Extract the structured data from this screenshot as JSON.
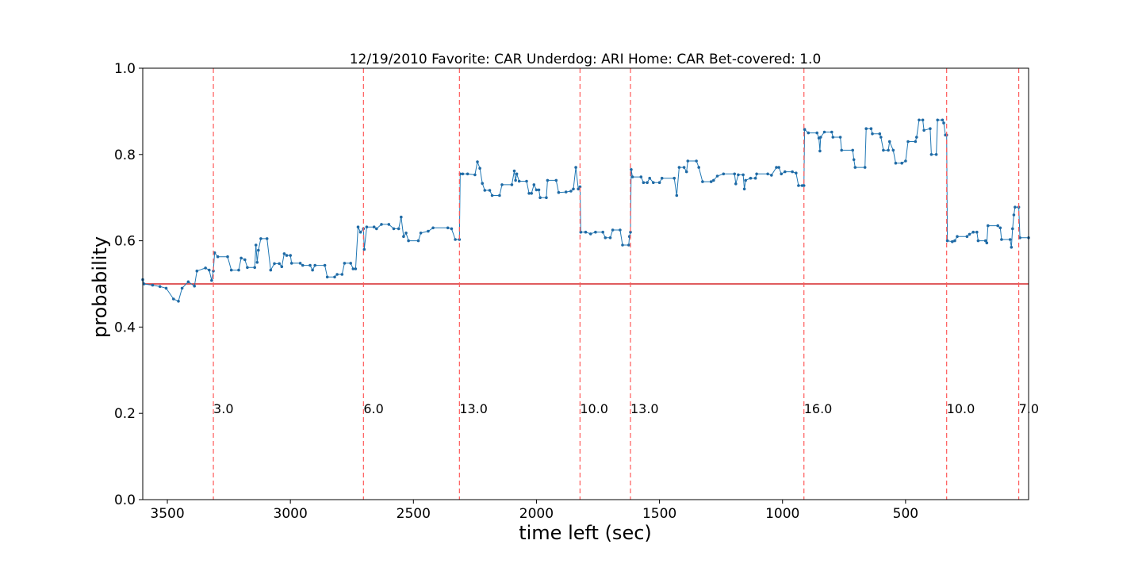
{
  "chart_data": {
    "type": "line",
    "title": "12/19/2010 Favorite: CAR Underdog: ARI Home: CAR Bet-covered: 1.0",
    "xlabel": "time left (sec)",
    "ylabel": "probability",
    "xlim": [
      3600,
      0
    ],
    "ylim": [
      0.0,
      1.0
    ],
    "x_ticks": [
      3500,
      3000,
      2500,
      2000,
      1500,
      1000,
      500
    ],
    "x_tick_labels": [
      "3500",
      "3000",
      "2500",
      "2000",
      "1500",
      "1000",
      "500"
    ],
    "y_ticks": [
      0.0,
      0.2,
      0.4,
      0.6,
      0.8,
      1.0
    ],
    "y_tick_labels": [
      "0.0",
      "0.2",
      "0.4",
      "0.6",
      "0.8",
      "1.0"
    ],
    "grid": false,
    "reference_line": {
      "y": 0.5,
      "color": "#d62728"
    },
    "series_color": "#1f77b4",
    "marker_color": "#1f6aa5",
    "event_line_color": "#ff5a5a",
    "events": [
      {
        "x": 3313,
        "label": "3.0"
      },
      {
        "x": 2703,
        "label": "6.0"
      },
      {
        "x": 2313,
        "label": "13.0"
      },
      {
        "x": 1823,
        "label": "10.0"
      },
      {
        "x": 1618,
        "label": "13.0"
      },
      {
        "x": 913,
        "label": "16.0"
      },
      {
        "x": 333,
        "label": "10.0"
      },
      {
        "x": 40,
        "label": "7.0"
      }
    ],
    "series": [
      {
        "values": [
          [
            3600,
            0.51
          ],
          [
            3595,
            0.5
          ],
          [
            3560,
            0.497
          ],
          [
            3530,
            0.494
          ],
          [
            3505,
            0.49
          ],
          [
            3475,
            0.465
          ],
          [
            3455,
            0.46
          ],
          [
            3440,
            0.49
          ],
          [
            3415,
            0.505
          ],
          [
            3390,
            0.495
          ],
          [
            3380,
            0.53
          ],
          [
            3345,
            0.537
          ],
          [
            3330,
            0.532
          ],
          [
            3320,
            0.508
          ],
          [
            3313,
            0.53
          ],
          [
            3308,
            0.572
          ],
          [
            3295,
            0.563
          ],
          [
            3255,
            0.563
          ],
          [
            3240,
            0.532
          ],
          [
            3210,
            0.532
          ],
          [
            3200,
            0.56
          ],
          [
            3185,
            0.556
          ],
          [
            3175,
            0.538
          ],
          [
            3145,
            0.538
          ],
          [
            3140,
            0.59
          ],
          [
            3135,
            0.55
          ],
          [
            3130,
            0.578
          ],
          [
            3120,
            0.605
          ],
          [
            3095,
            0.605
          ],
          [
            3080,
            0.532
          ],
          [
            3065,
            0.547
          ],
          [
            3045,
            0.547
          ],
          [
            3035,
            0.54
          ],
          [
            3025,
            0.57
          ],
          [
            3015,
            0.566
          ],
          [
            3000,
            0.566
          ],
          [
            2995,
            0.548
          ],
          [
            2960,
            0.548
          ],
          [
            2950,
            0.543
          ],
          [
            2920,
            0.543
          ],
          [
            2910,
            0.532
          ],
          [
            2900,
            0.543
          ],
          [
            2860,
            0.543
          ],
          [
            2850,
            0.516
          ],
          [
            2820,
            0.516
          ],
          [
            2810,
            0.522
          ],
          [
            2790,
            0.522
          ],
          [
            2780,
            0.548
          ],
          [
            2755,
            0.548
          ],
          [
            2745,
            0.535
          ],
          [
            2735,
            0.535
          ],
          [
            2725,
            0.632
          ],
          [
            2715,
            0.62
          ],
          [
            2703,
            0.628
          ],
          [
            2700,
            0.58
          ],
          [
            2690,
            0.632
          ],
          [
            2660,
            0.632
          ],
          [
            2650,
            0.628
          ],
          [
            2630,
            0.638
          ],
          [
            2600,
            0.638
          ],
          [
            2580,
            0.628
          ],
          [
            2560,
            0.628
          ],
          [
            2550,
            0.655
          ],
          [
            2540,
            0.61
          ],
          [
            2530,
            0.618
          ],
          [
            2520,
            0.6
          ],
          [
            2480,
            0.6
          ],
          [
            2470,
            0.618
          ],
          [
            2440,
            0.622
          ],
          [
            2420,
            0.63
          ],
          [
            2360,
            0.63
          ],
          [
            2345,
            0.628
          ],
          [
            2330,
            0.603
          ],
          [
            2313,
            0.603
          ],
          [
            2310,
            0.755
          ],
          [
            2300,
            0.755
          ],
          [
            2280,
            0.755
          ],
          [
            2250,
            0.753
          ],
          [
            2240,
            0.783
          ],
          [
            2230,
            0.768
          ],
          [
            2220,
            0.733
          ],
          [
            2210,
            0.717
          ],
          [
            2190,
            0.717
          ],
          [
            2180,
            0.705
          ],
          [
            2150,
            0.705
          ],
          [
            2140,
            0.73
          ],
          [
            2100,
            0.73
          ],
          [
            2090,
            0.762
          ],
          [
            2085,
            0.74
          ],
          [
            2080,
            0.755
          ],
          [
            2070,
            0.738
          ],
          [
            2040,
            0.738
          ],
          [
            2030,
            0.71
          ],
          [
            2020,
            0.71
          ],
          [
            2010,
            0.73
          ],
          [
            2000,
            0.718
          ],
          [
            1990,
            0.718
          ],
          [
            1985,
            0.7
          ],
          [
            1960,
            0.7
          ],
          [
            1955,
            0.74
          ],
          [
            1920,
            0.74
          ],
          [
            1910,
            0.712
          ],
          [
            1880,
            0.713
          ],
          [
            1860,
            0.715
          ],
          [
            1850,
            0.72
          ],
          [
            1840,
            0.77
          ],
          [
            1830,
            0.72
          ],
          [
            1823,
            0.725
          ],
          [
            1820,
            0.62
          ],
          [
            1800,
            0.62
          ],
          [
            1780,
            0.616
          ],
          [
            1760,
            0.62
          ],
          [
            1730,
            0.62
          ],
          [
            1720,
            0.607
          ],
          [
            1700,
            0.607
          ],
          [
            1690,
            0.625
          ],
          [
            1660,
            0.625
          ],
          [
            1650,
            0.59
          ],
          [
            1625,
            0.59
          ],
          [
            1622,
            0.61
          ],
          [
            1618,
            0.62
          ],
          [
            1615,
            0.765
          ],
          [
            1610,
            0.748
          ],
          [
            1575,
            0.748
          ],
          [
            1565,
            0.735
          ],
          [
            1550,
            0.735
          ],
          [
            1540,
            0.745
          ],
          [
            1525,
            0.735
          ],
          [
            1500,
            0.735
          ],
          [
            1490,
            0.745
          ],
          [
            1440,
            0.745
          ],
          [
            1430,
            0.705
          ],
          [
            1420,
            0.77
          ],
          [
            1400,
            0.77
          ],
          [
            1390,
            0.76
          ],
          [
            1385,
            0.785
          ],
          [
            1350,
            0.785
          ],
          [
            1340,
            0.77
          ],
          [
            1325,
            0.737
          ],
          [
            1290,
            0.737
          ],
          [
            1280,
            0.74
          ],
          [
            1265,
            0.75
          ],
          [
            1240,
            0.755
          ],
          [
            1195,
            0.755
          ],
          [
            1190,
            0.732
          ],
          [
            1180,
            0.753
          ],
          [
            1160,
            0.753
          ],
          [
            1155,
            0.72
          ],
          [
            1150,
            0.74
          ],
          [
            1130,
            0.745
          ],
          [
            1110,
            0.745
          ],
          [
            1105,
            0.755
          ],
          [
            1060,
            0.755
          ],
          [
            1045,
            0.752
          ],
          [
            1025,
            0.77
          ],
          [
            1015,
            0.77
          ],
          [
            1005,
            0.755
          ],
          [
            990,
            0.76
          ],
          [
            960,
            0.76
          ],
          [
            945,
            0.757
          ],
          [
            935,
            0.728
          ],
          [
            920,
            0.728
          ],
          [
            913,
            0.728
          ],
          [
            910,
            0.858
          ],
          [
            895,
            0.85
          ],
          [
            860,
            0.85
          ],
          [
            852,
            0.838
          ],
          [
            848,
            0.808
          ],
          [
            845,
            0.84
          ],
          [
            830,
            0.852
          ],
          [
            800,
            0.852
          ],
          [
            795,
            0.84
          ],
          [
            765,
            0.84
          ],
          [
            760,
            0.81
          ],
          [
            715,
            0.81
          ],
          [
            710,
            0.788
          ],
          [
            705,
            0.77
          ],
          [
            665,
            0.77
          ],
          [
            660,
            0.86
          ],
          [
            640,
            0.86
          ],
          [
            635,
            0.848
          ],
          [
            605,
            0.848
          ],
          [
            600,
            0.84
          ],
          [
            590,
            0.81
          ],
          [
            570,
            0.81
          ],
          [
            565,
            0.83
          ],
          [
            550,
            0.81
          ],
          [
            540,
            0.78
          ],
          [
            515,
            0.78
          ],
          [
            500,
            0.785
          ],
          [
            490,
            0.83
          ],
          [
            460,
            0.83
          ],
          [
            455,
            0.84
          ],
          [
            445,
            0.88
          ],
          [
            430,
            0.88
          ],
          [
            425,
            0.856
          ],
          [
            400,
            0.86
          ],
          [
            395,
            0.8
          ],
          [
            375,
            0.8
          ],
          [
            370,
            0.88
          ],
          [
            350,
            0.88
          ],
          [
            345,
            0.873
          ],
          [
            338,
            0.845
          ],
          [
            333,
            0.845
          ],
          [
            330,
            0.6
          ],
          [
            310,
            0.598
          ],
          [
            300,
            0.6
          ],
          [
            290,
            0.61
          ],
          [
            250,
            0.61
          ],
          [
            240,
            0.615
          ],
          [
            225,
            0.62
          ],
          [
            210,
            0.62
          ],
          [
            205,
            0.6
          ],
          [
            175,
            0.6
          ],
          [
            170,
            0.595
          ],
          [
            165,
            0.635
          ],
          [
            125,
            0.635
          ],
          [
            115,
            0.63
          ],
          [
            110,
            0.603
          ],
          [
            75,
            0.603
          ],
          [
            70,
            0.585
          ],
          [
            65,
            0.628
          ],
          [
            60,
            0.66
          ],
          [
            55,
            0.678
          ],
          [
            40,
            0.678
          ],
          [
            35,
            0.607
          ],
          [
            0,
            0.607
          ]
        ]
      }
    ]
  }
}
